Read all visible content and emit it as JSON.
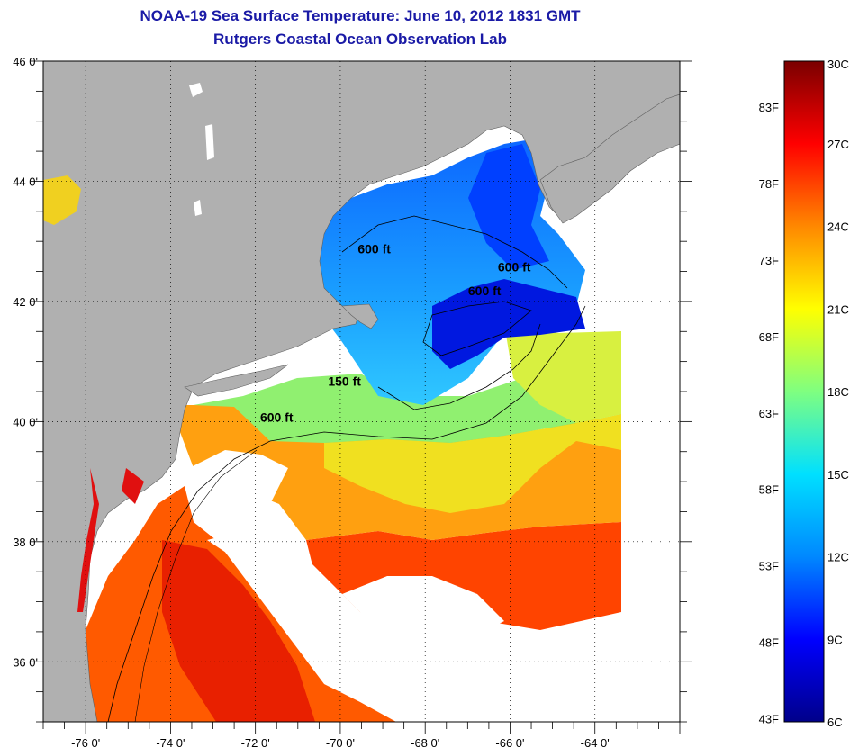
{
  "title": "NOAA-19 Sea Surface Temperature:  June 10, 2012 1831 GMT",
  "subtitle": "Rutgers Coastal Ocean Observation Lab",
  "map": {
    "lat_range": [
      35,
      46
    ],
    "lon_range": [
      -77,
      -62
    ],
    "lat_labels": [
      "46 0'",
      "44 0'",
      "42 0'",
      "40 0'",
      "38 0'",
      "36 0'"
    ],
    "lat_values": [
      46,
      44,
      42,
      40,
      38,
      36
    ],
    "lon_labels": [
      "-76 0'",
      "-74 0'",
      "-72 0'",
      "-70 0'",
      "-68 0'",
      "-66 0'",
      "-64 0'"
    ],
    "lon_values": [
      -76,
      -74,
      -72,
      -70,
      -68,
      -66,
      -64
    ],
    "contour_labels": [
      {
        "text": "600 ft",
        "lon": -69.2,
        "lat": 42.8
      },
      {
        "text": "600 ft",
        "lon": -65.9,
        "lat": 42.5
      },
      {
        "text": "600 ft",
        "lon": -66.6,
        "lat": 42.1
      },
      {
        "text": "150 ft",
        "lon": -69.9,
        "lat": 40.6
      },
      {
        "text": "600 ft",
        "lon": -71.5,
        "lat": 40.0
      }
    ],
    "land_color": "#b0b0b0",
    "cloud_color": "#ffffff"
  },
  "colorbar": {
    "fahrenheit_labels": [
      "43F",
      "48F",
      "53F",
      "58F",
      "63F",
      "68F",
      "73F",
      "78F",
      "83F"
    ],
    "celsius_labels": [
      "6C",
      "9C",
      "12C",
      "15C",
      "18C",
      "21C",
      "24C",
      "27C",
      "30C"
    ],
    "stops": [
      "#00008a",
      "#0000ff",
      "#0088ff",
      "#00e0ff",
      "#7fff80",
      "#ffff00",
      "#ff8800",
      "#ff0000",
      "#7a0000"
    ]
  }
}
